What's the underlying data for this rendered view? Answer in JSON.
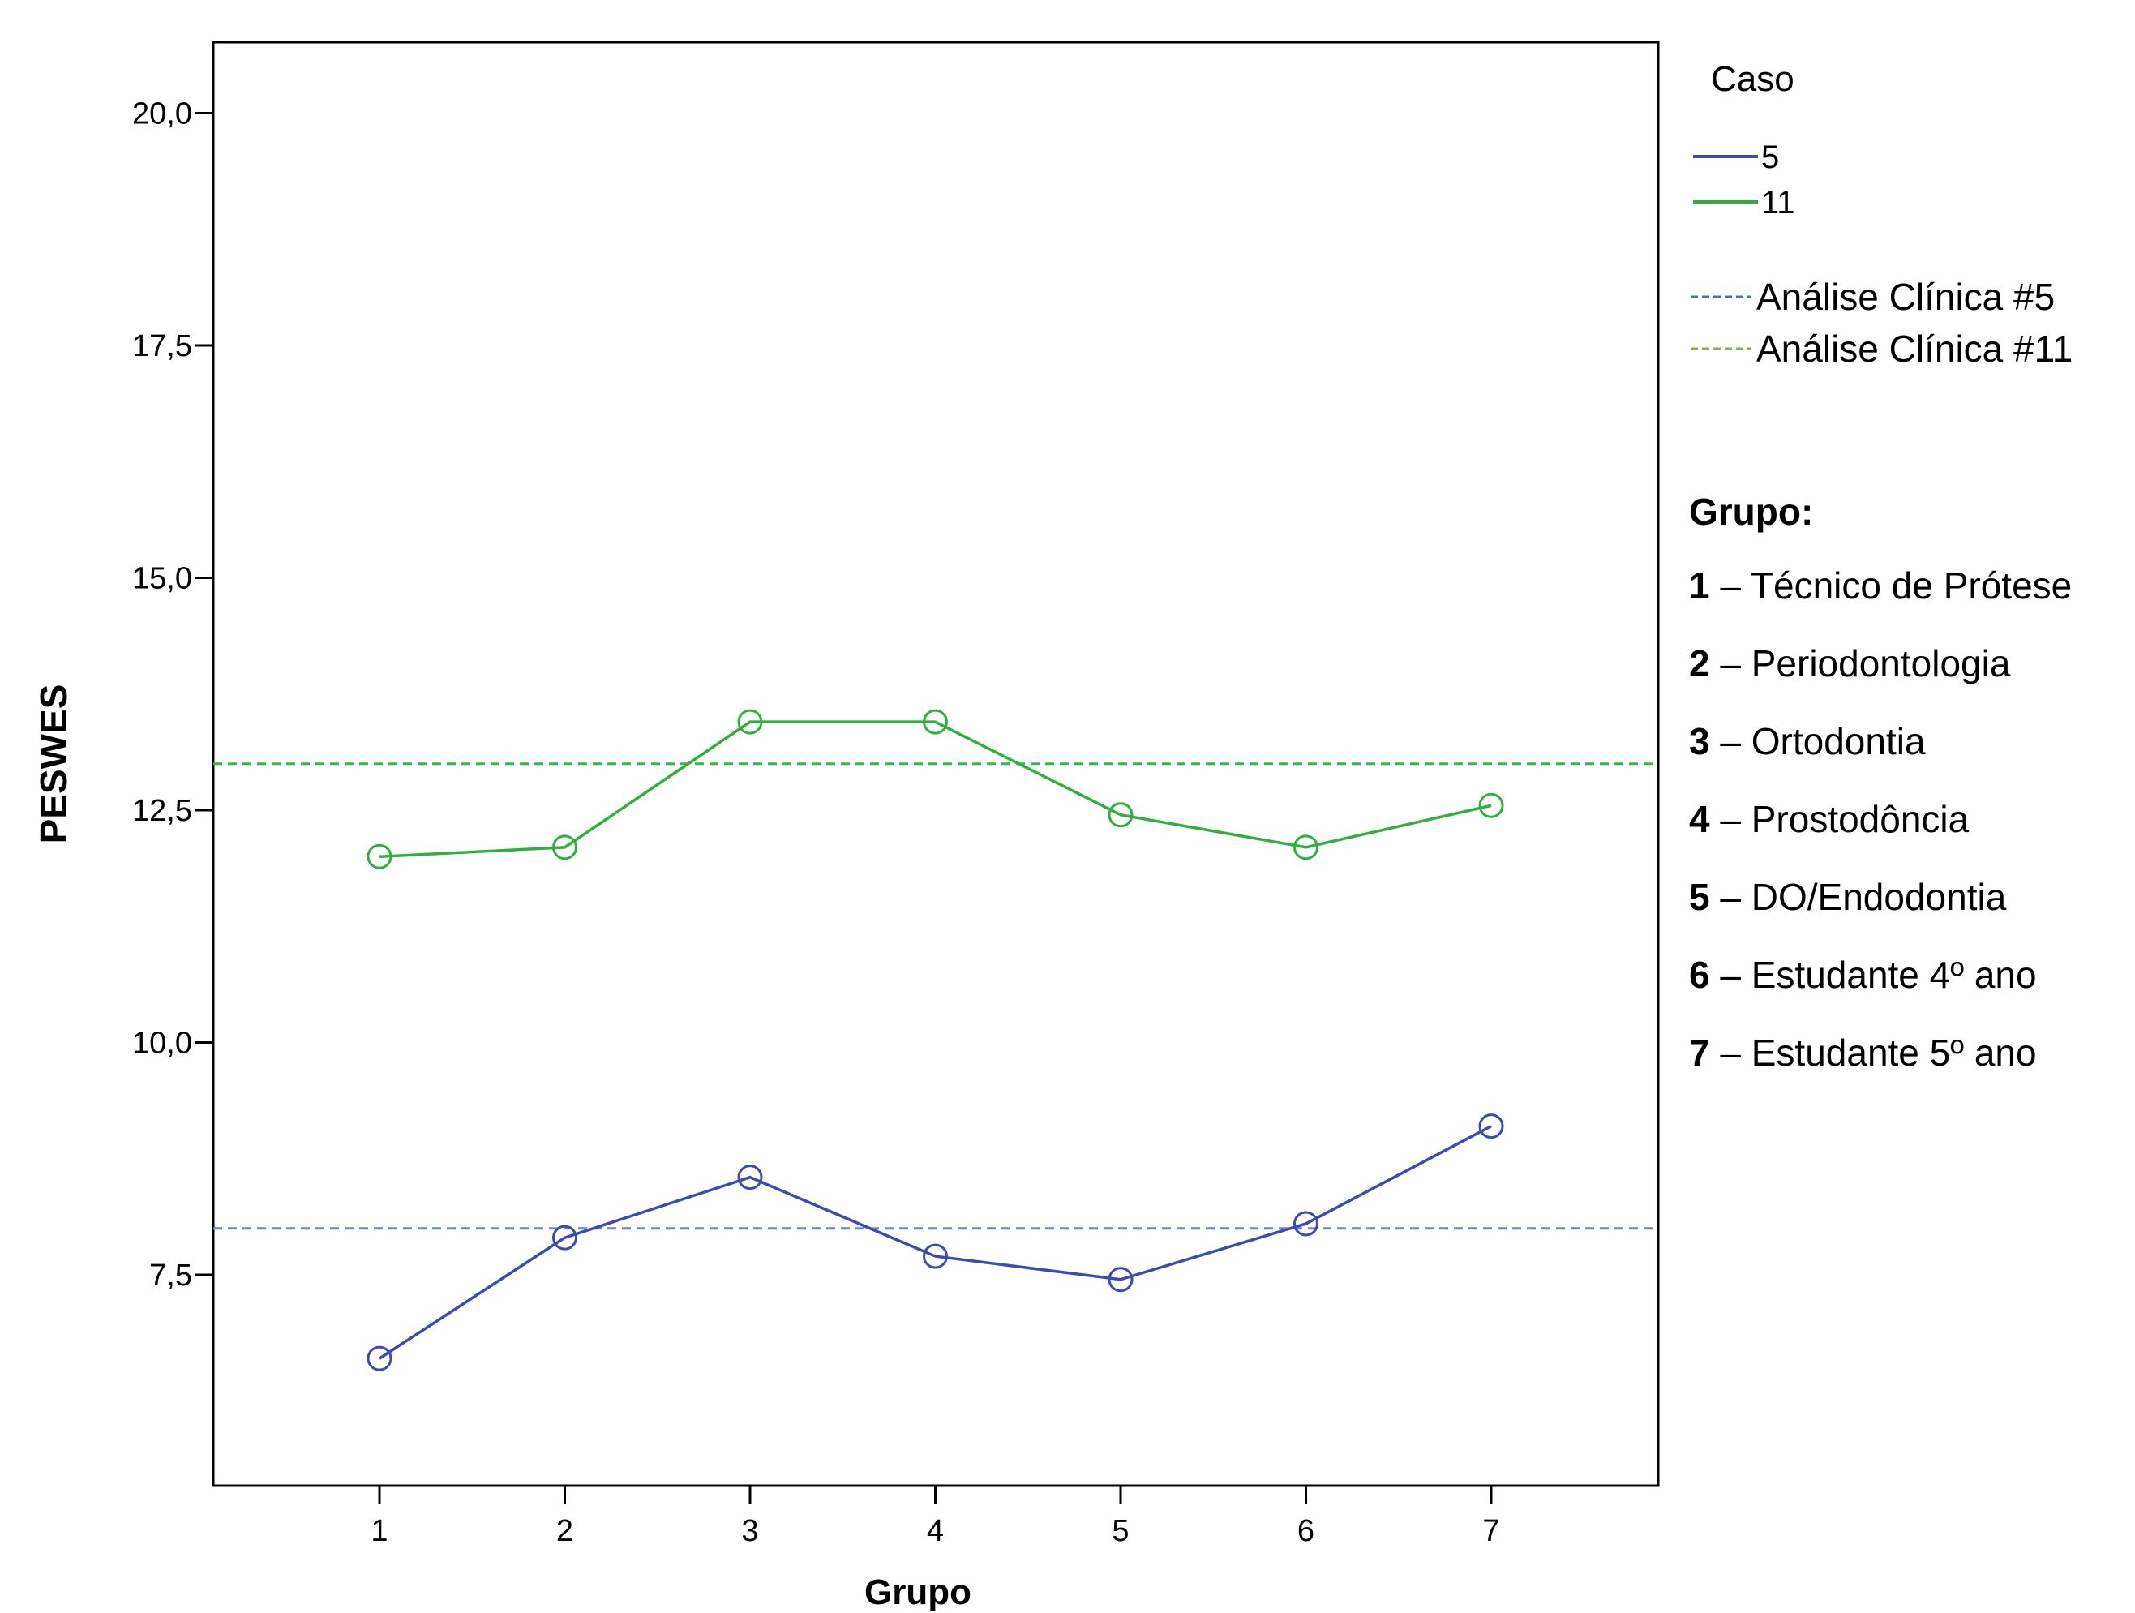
{
  "chart_data": {
    "type": "line",
    "title": "",
    "xlabel": "Grupo",
    "ylabel": "PESWES",
    "categories": [
      "1",
      "2",
      "3",
      "4",
      "5",
      "6",
      "7"
    ],
    "y_ticks": [
      "20,0",
      "17,5",
      "15,0",
      "12,5",
      "10,0",
      "7,5"
    ],
    "y_tick_values": [
      20.0,
      17.5,
      15.0,
      12.5,
      10.0,
      7.5
    ],
    "ylim": [
      5.25,
      20.8
    ],
    "grid": false,
    "legend_position": "right",
    "legend_title": "Caso",
    "series": [
      {
        "name": "5",
        "color": "#3c4bb0",
        "marker": "circle",
        "values": [
          6.6,
          7.9,
          8.55,
          7.7,
          7.45,
          8.05,
          9.1
        ]
      },
      {
        "name": "11",
        "color": "#2fb03c",
        "marker": "circle",
        "values": [
          12.0,
          12.1,
          13.45,
          13.45,
          12.45,
          12.1,
          12.55
        ]
      }
    ],
    "reference_lines": [
      {
        "name": "Análise Clínica #5",
        "value": 8.0,
        "color": "#6f7fe8",
        "style": "dashed"
      },
      {
        "name": "Análise Clínica #11",
        "value": 13.0,
        "color": "#33b84a",
        "style": "dashed"
      }
    ],
    "reference_legend_colors": [
      "#3f6fd8",
      "#8ab040"
    ],
    "group_legend": {
      "title": "Grupo:",
      "items": [
        {
          "num": "1",
          "label": "– Técnico de Prótese"
        },
        {
          "num": "2",
          "label": "– Periodontologia"
        },
        {
          "num": "3",
          "label": "– Ortodontia"
        },
        {
          "num": "4",
          "label": "– Prostodôncia"
        },
        {
          "num": "5",
          "label": "– DO/Endodontia"
        },
        {
          "num": "6",
          "label": "– Estudante 4º ano"
        },
        {
          "num": "7",
          "label": "– Estudante 5º ano"
        }
      ]
    }
  }
}
